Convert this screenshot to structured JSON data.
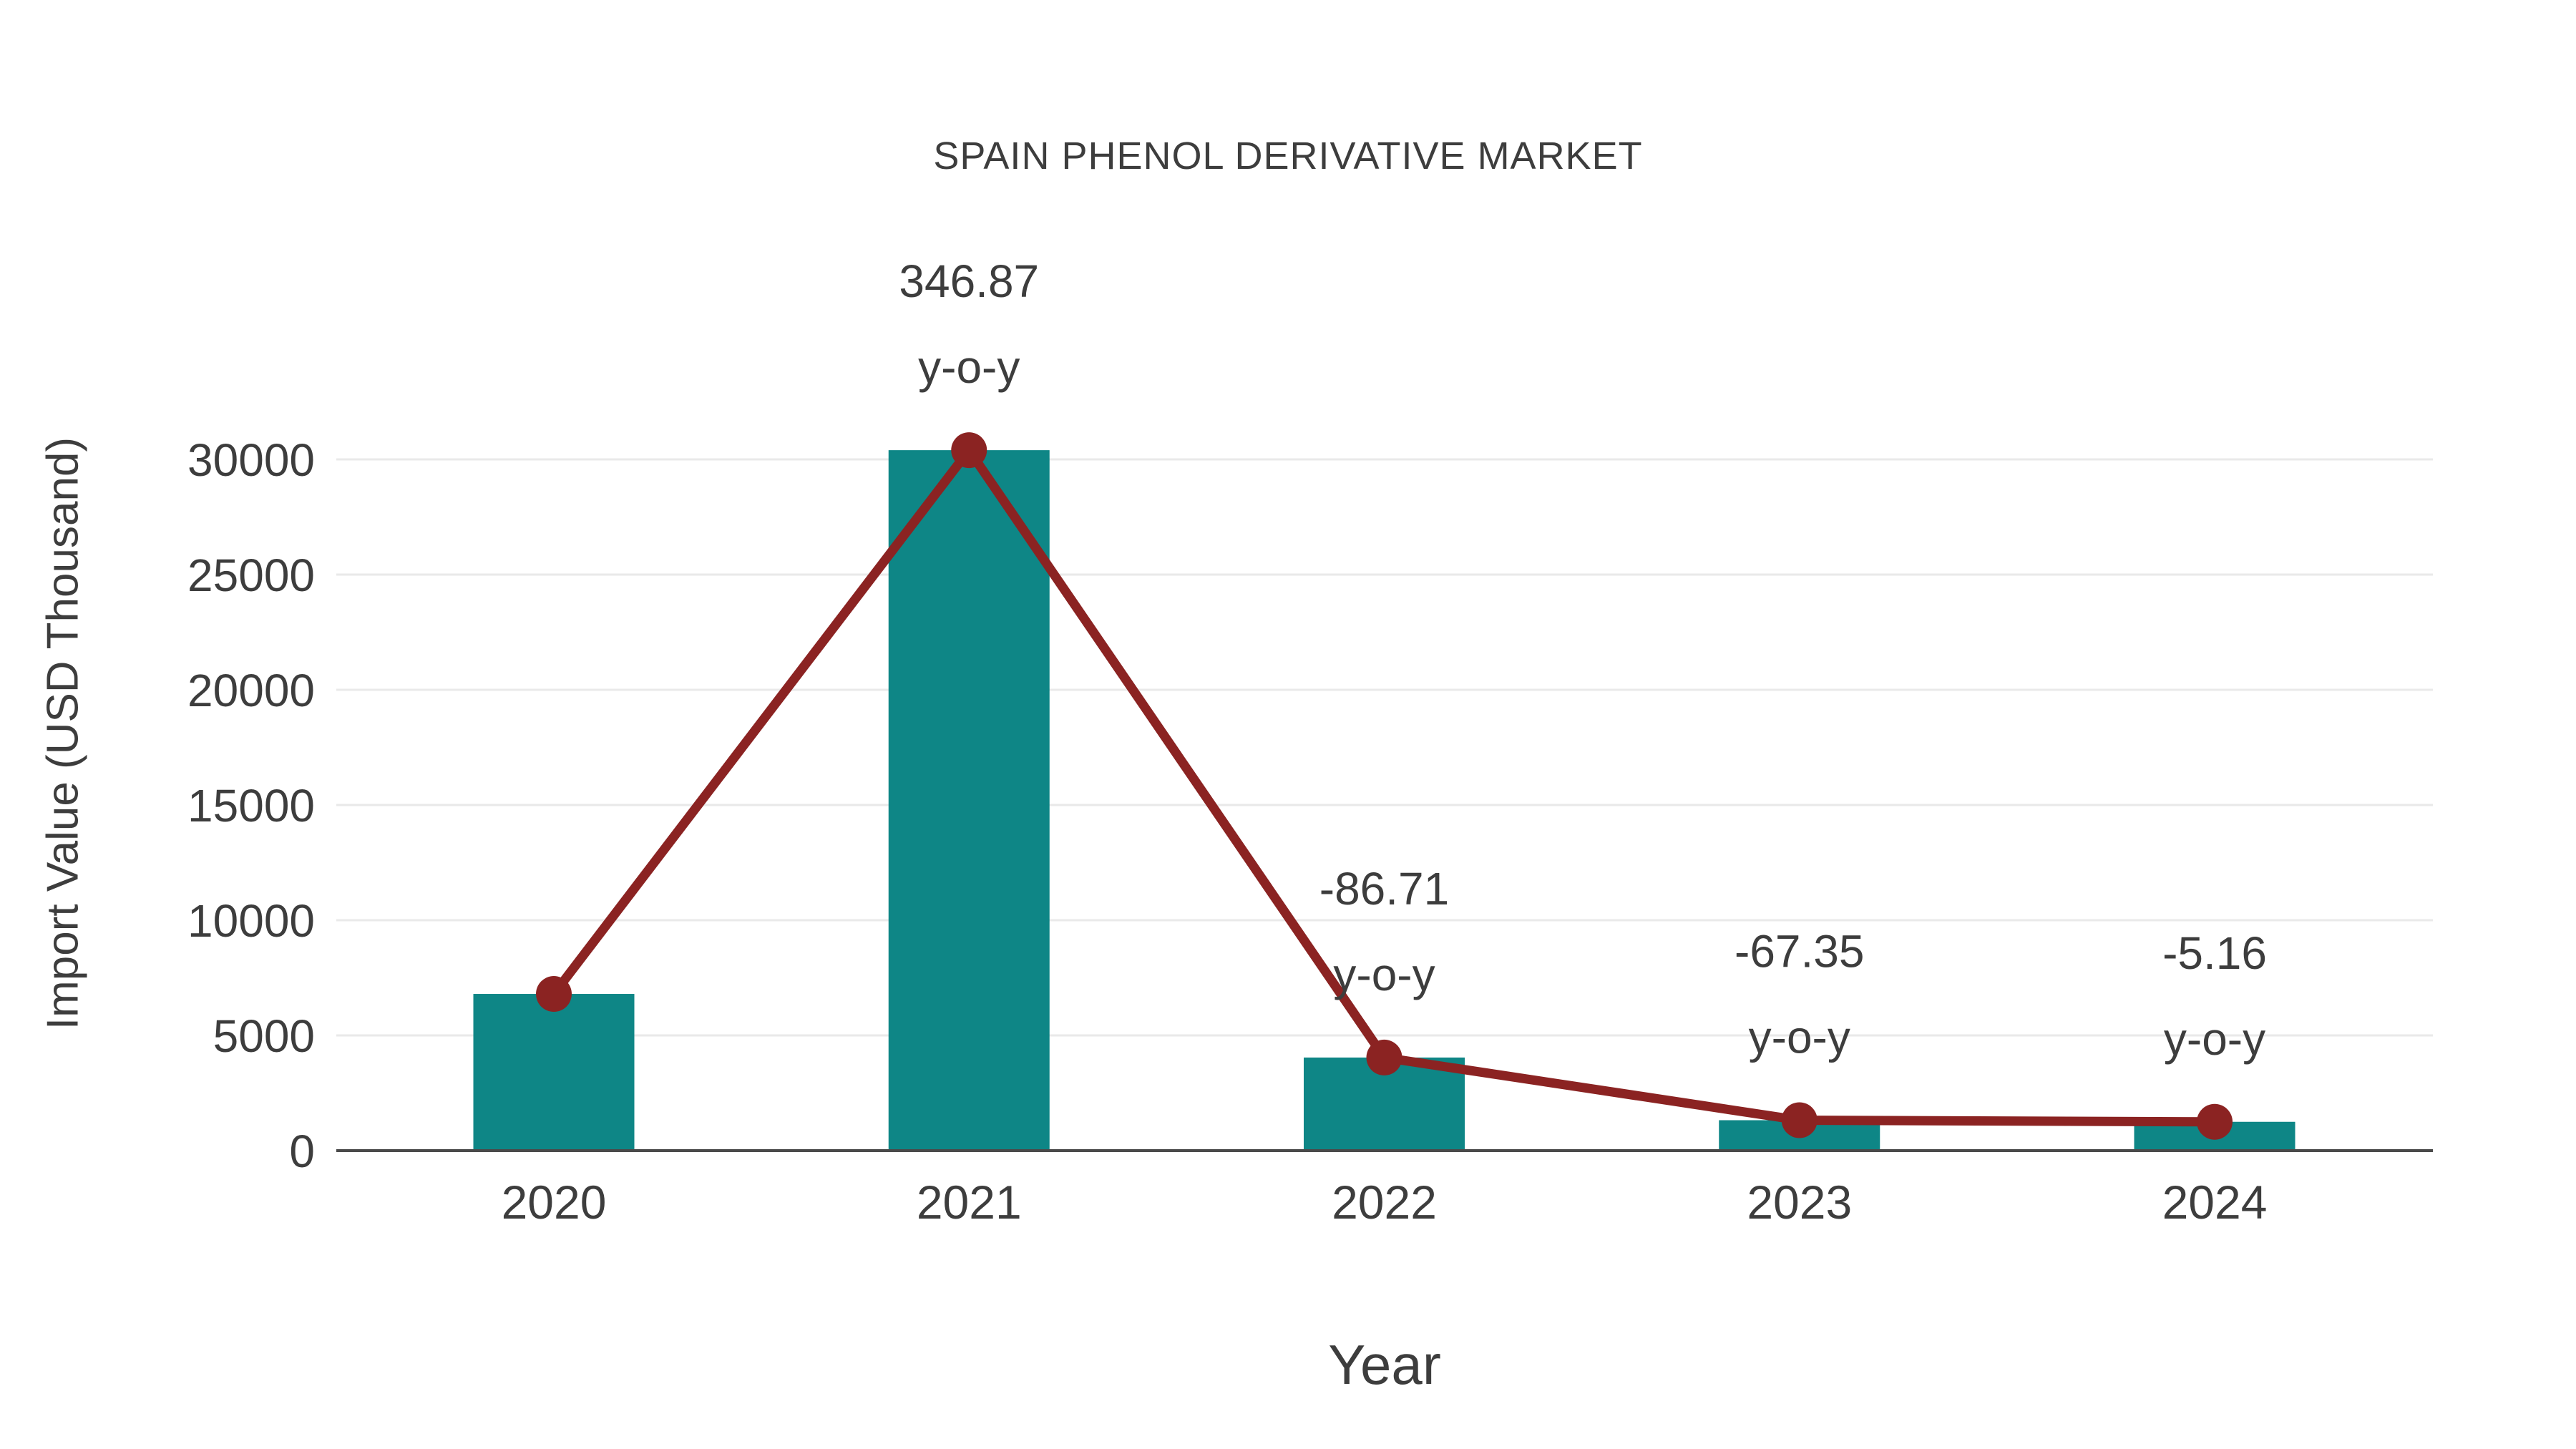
{
  "page": {
    "background": "#FFFFFF"
  },
  "chart_data": {
    "type": "bar",
    "title": "SPAIN PHENOL DERIVATIVE MARKET",
    "xlabel": "Year",
    "ylabel": "Import Value (USD Thousand)",
    "categories": [
      "2020",
      "2021",
      "2022",
      "2023",
      "2024"
    ],
    "series": [
      {
        "name": "Import Value (USD Thousand)",
        "type": "bar",
        "color": "#0E8686",
        "values": [
          6800,
          30400,
          4040,
          1320,
          1250
        ]
      },
      {
        "name": "y-o-y trend line",
        "type": "line",
        "color": "#8B2322",
        "values": [
          6800,
          30400,
          4040,
          1320,
          1250
        ]
      }
    ],
    "annotations": [
      {
        "category": "2021",
        "value_label": "346.87",
        "suffix_label": "y-o-y"
      },
      {
        "category": "2022",
        "value_label": "-86.71",
        "suffix_label": "y-o-y"
      },
      {
        "category": "2023",
        "value_label": "-67.35",
        "suffix_label": "y-o-y"
      },
      {
        "category": "2024",
        "value_label": "-5.16",
        "suffix_label": "y-o-y"
      }
    ],
    "yticks": [
      0,
      5000,
      10000,
      15000,
      20000,
      25000,
      30000
    ],
    "ylim": [
      0,
      31000
    ],
    "grid": true,
    "legend_position": "none",
    "colors": {
      "text": "#3D3D3D",
      "gridline": "#E9E9E9",
      "axis_line": "#4A4A4A",
      "background": "#FFFFFF"
    }
  }
}
